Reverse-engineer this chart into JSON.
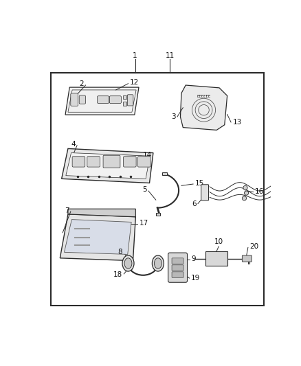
{
  "bg_color": "#ffffff",
  "border_color": "#1a1a1a",
  "line_color": "#2a2a2a",
  "text_color": "#111111",
  "fig_width": 4.38,
  "fig_height": 5.33,
  "dpi": 100
}
